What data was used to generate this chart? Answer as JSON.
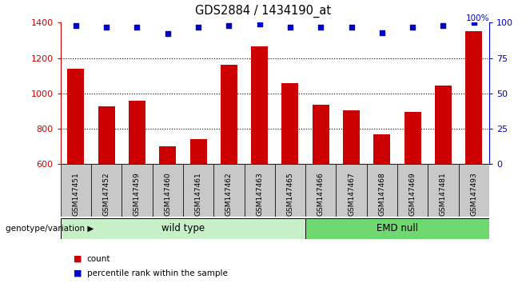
{
  "title": "GDS2884 / 1434190_at",
  "samples": [
    "GSM147451",
    "GSM147452",
    "GSM147459",
    "GSM147460",
    "GSM147461",
    "GSM147462",
    "GSM147463",
    "GSM147465",
    "GSM147466",
    "GSM147467",
    "GSM147468",
    "GSM147469",
    "GSM147481",
    "GSM147493"
  ],
  "counts": [
    1140,
    925,
    960,
    700,
    740,
    1160,
    1265,
    1060,
    935,
    905,
    770,
    895,
    1045,
    1350
  ],
  "percentiles": [
    98,
    97,
    97,
    92,
    97,
    98,
    99,
    97,
    97,
    97,
    93,
    97,
    98,
    100
  ],
  "wild_type_count": 8,
  "bar_color": "#CC0000",
  "scatter_color": "#0000CC",
  "ylim_left": [
    600,
    1400
  ],
  "ylim_right": [
    0,
    100
  ],
  "yticks_left": [
    600,
    800,
    1000,
    1200,
    1400
  ],
  "yticks_right": [
    0,
    25,
    50,
    75,
    100
  ],
  "grid_values": [
    800,
    1000,
    1200
  ],
  "wt_box_color": "#c8f0c8",
  "emd_box_color": "#70d870",
  "xtick_bg_color": "#c8c8c8",
  "plot_bg": "#ffffff"
}
